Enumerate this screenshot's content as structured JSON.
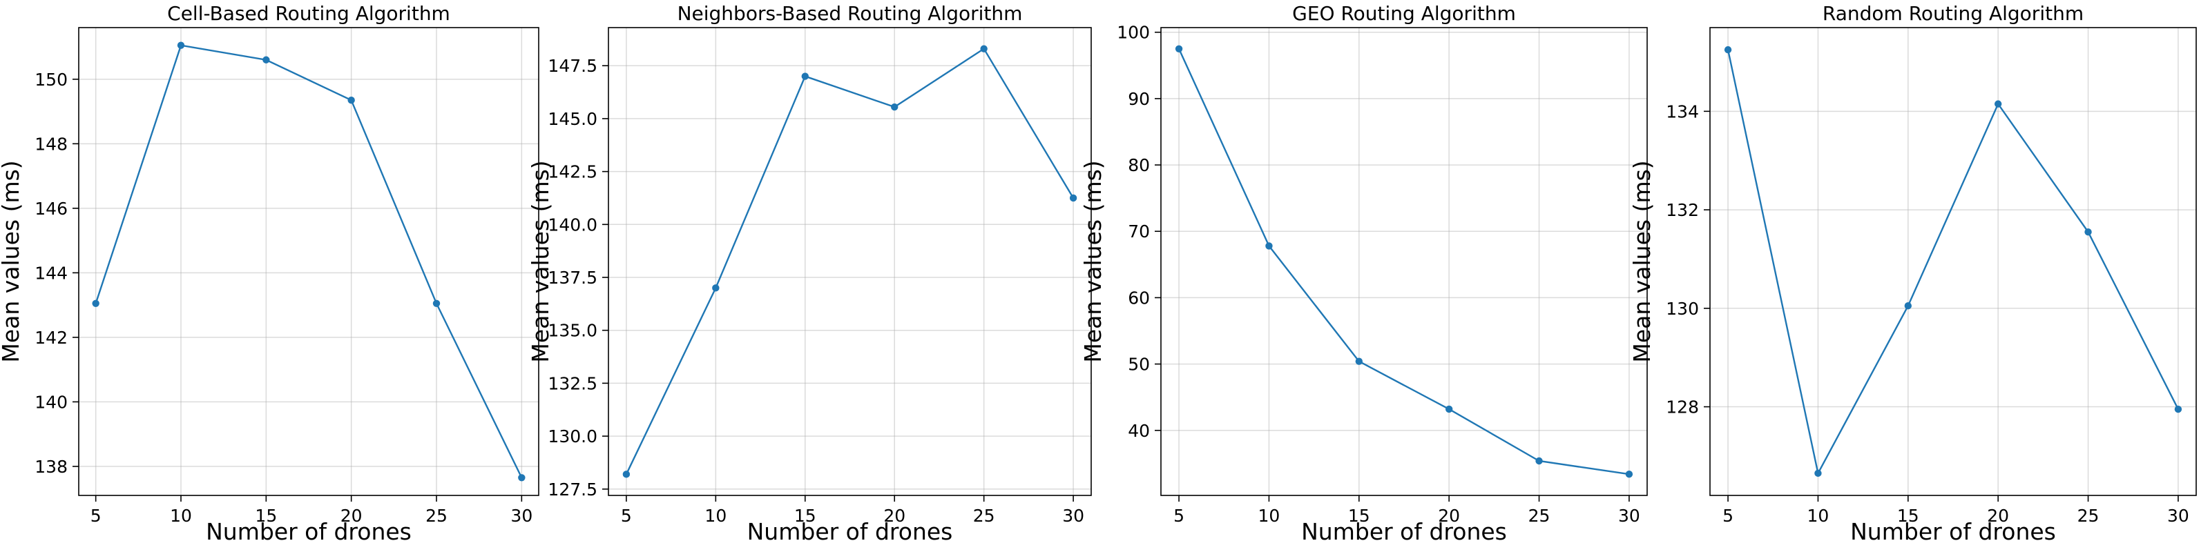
{
  "chart_data": [
    {
      "type": "line",
      "title": "Cell-Based Routing Algorithm",
      "xlabel": "Number of drones",
      "ylabel": "Mean values (ms)",
      "x": [
        5,
        10,
        15,
        20,
        25,
        30
      ],
      "values": [
        143.05,
        151.05,
        150.6,
        149.35,
        143.05,
        137.65
      ],
      "xlim": [
        4,
        31
      ],
      "ylim": [
        137.1,
        151.6
      ],
      "xticks": [
        5,
        10,
        15,
        20,
        25,
        30
      ],
      "yticks": [
        138,
        140,
        142,
        144,
        146,
        148,
        150
      ],
      "ytick_labels": [
        "138",
        "140",
        "142",
        "144",
        "146",
        "148",
        "150"
      ],
      "grid": true,
      "color": "#1f77b4"
    },
    {
      "type": "line",
      "title": "Neighbors-Based Routing Algorithm",
      "xlabel": "Number of drones",
      "ylabel": "Mean values (ms)",
      "x": [
        5,
        10,
        15,
        20,
        25,
        30
      ],
      "values": [
        128.2,
        137.0,
        147.0,
        145.55,
        148.3,
        141.25
      ],
      "xlim": [
        4,
        31
      ],
      "ylim": [
        127.2,
        149.3
      ],
      "xticks": [
        5,
        10,
        15,
        20,
        25,
        30
      ],
      "yticks": [
        127.5,
        130,
        132.5,
        135,
        137.5,
        140,
        142.5,
        145,
        147.5
      ],
      "ytick_labels": [
        "127.5",
        "130.0",
        "132.5",
        "135.0",
        "137.5",
        "140.0",
        "142.5",
        "145.0",
        "147.5"
      ],
      "grid": true,
      "color": "#1f77b4"
    },
    {
      "type": "line",
      "title": "GEO Routing Algorithm",
      "xlabel": "Number of drones",
      "ylabel": "Mean values (ms)",
      "x": [
        5,
        10,
        15,
        20,
        25,
        30
      ],
      "values": [
        97.5,
        67.8,
        50.4,
        43.2,
        35.4,
        33.4
      ],
      "xlim": [
        4,
        31
      ],
      "ylim": [
        30.2,
        100.7
      ],
      "xticks": [
        5,
        10,
        15,
        20,
        25,
        30
      ],
      "yticks": [
        40,
        50,
        60,
        70,
        80,
        90,
        100
      ],
      "ytick_labels": [
        "40",
        "50",
        "60",
        "70",
        "80",
        "90",
        "100"
      ],
      "grid": true,
      "color": "#1f77b4"
    },
    {
      "type": "line",
      "title": "Random Routing Algorithm",
      "xlabel": "Number of drones",
      "ylabel": "Mean values (ms)",
      "x": [
        5,
        10,
        15,
        20,
        25,
        30
      ],
      "values": [
        135.25,
        126.65,
        130.05,
        134.15,
        131.55,
        127.95
      ],
      "xlim": [
        4,
        31
      ],
      "ylim": [
        126.2,
        135.7
      ],
      "xticks": [
        5,
        10,
        15,
        20,
        25,
        30
      ],
      "yticks": [
        128,
        130,
        132,
        134
      ],
      "ytick_labels": [
        "128",
        "130",
        "132",
        "134"
      ],
      "grid": true,
      "color": "#1f77b4"
    }
  ]
}
